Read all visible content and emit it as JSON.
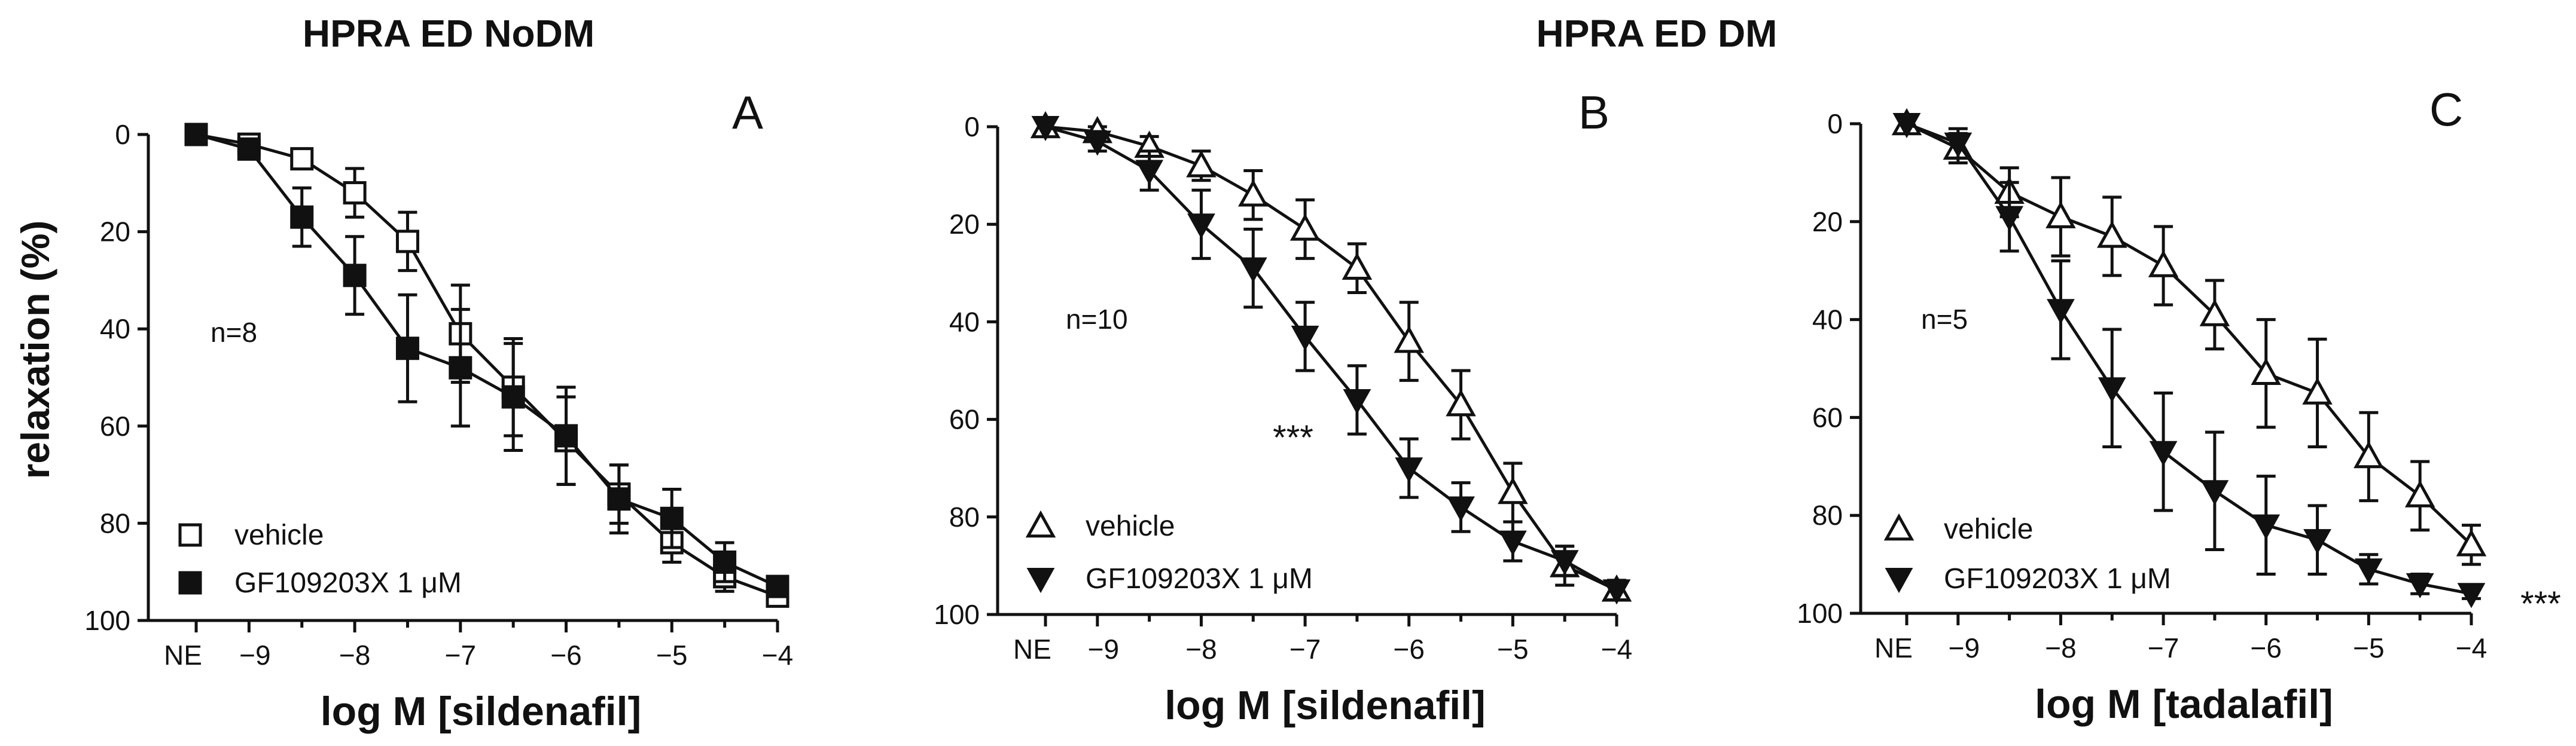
{
  "titles": [
    "HPRA ED NoDM",
    "HPRA ED DM"
  ],
  "y_axis_label": "relaxation (%)",
  "colors": {
    "ink": "#111111",
    "background": "#ffffff"
  },
  "chart_data": [
    {
      "type": "line",
      "panel": "A",
      "xlabel": "log M [sildenafil]",
      "ylabel": "relaxation (%)",
      "x_categories": [
        "NE",
        "-9",
        "-8.5",
        "-8",
        "-7.5",
        "-7",
        "-6.5",
        "-6",
        "-5.5",
        "-5",
        "-4.5",
        "-4"
      ],
      "x_tick_labels": [
        "NE",
        "−9",
        "−8",
        "−7",
        "−6",
        "−5",
        "−4"
      ],
      "y_ticks": [
        "0",
        "20",
        "40",
        "60",
        "80",
        "100"
      ],
      "ylim": [
        0,
        100
      ],
      "y_inverted": true,
      "n_label": "n=8",
      "legend_position": "bottom-left",
      "series": [
        {
          "name": "vehicle",
          "marker": "open-square",
          "values": [
            0,
            2,
            5,
            12,
            22,
            41,
            52,
            63,
            74,
            84,
            91,
            95
          ],
          "errors": [
            0,
            1,
            2,
            5,
            6,
            10,
            10,
            9,
            6,
            4,
            3,
            2
          ]
        },
        {
          "name": "GF109203X 1 μM",
          "marker": "filled-square",
          "values": [
            0,
            3,
            17,
            29,
            44,
            48,
            54,
            62,
            75,
            79,
            88,
            93
          ],
          "errors": [
            0,
            2,
            6,
            8,
            11,
            12,
            11,
            10,
            7,
            6,
            4,
            2
          ]
        }
      ]
    },
    {
      "type": "line",
      "panel": "B",
      "xlabel": "log M [sildenafil]",
      "ylabel": "relaxation (%)",
      "x_categories": [
        "NE",
        "-9",
        "-8.5",
        "-8",
        "-7.5",
        "-7",
        "-6.5",
        "-6",
        "-5.5",
        "-5",
        "-4.5",
        "-4"
      ],
      "x_tick_labels": [
        "NE",
        "−9",
        "−8",
        "−7",
        "−6",
        "−5",
        "−4"
      ],
      "y_ticks": [
        "0",
        "20",
        "40",
        "60",
        "80",
        "100"
      ],
      "ylim": [
        0,
        100
      ],
      "y_inverted": true,
      "n_label": "n=10",
      "significance": "***",
      "legend_position": "bottom-left",
      "series": [
        {
          "name": "vehicle",
          "marker": "open-triangle-up",
          "values": [
            0,
            1,
            4,
            8,
            14,
            21,
            29,
            44,
            57,
            75,
            90,
            95
          ],
          "errors": [
            0,
            1,
            2,
            3,
            5,
            6,
            5,
            8,
            7,
            6,
            4,
            2
          ]
        },
        {
          "name": "GF109203X 1 μM",
          "marker": "filled-triangle-down",
          "values": [
            0,
            3,
            9,
            20,
            29,
            43,
            56,
            70,
            78,
            85,
            89,
            95
          ],
          "errors": [
            0,
            2,
            4,
            7,
            8,
            7,
            7,
            6,
            5,
            4,
            3,
            2
          ]
        }
      ]
    },
    {
      "type": "line",
      "panel": "C",
      "xlabel": "log M [tadalafil]",
      "ylabel": "relaxation (%)",
      "x_categories": [
        "NE",
        "-9",
        "-8.5",
        "-8",
        "-7.5",
        "-7",
        "-6.5",
        "-6",
        "-5.5",
        "-5",
        "-4.5",
        "-4"
      ],
      "x_tick_labels": [
        "NE",
        "−9",
        "−8",
        "−7",
        "−6",
        "−5",
        "−4"
      ],
      "y_ticks": [
        "0",
        "20",
        "40",
        "60",
        "80",
        "100"
      ],
      "ylim": [
        0,
        100
      ],
      "y_inverted": true,
      "n_label": "n=5",
      "significance": "***",
      "legend_position": "bottom-left",
      "series": [
        {
          "name": "vehicle",
          "marker": "open-triangle-up",
          "values": [
            0,
            5,
            14,
            19,
            23,
            29,
            39,
            51,
            55,
            68,
            76,
            86
          ],
          "errors": [
            0,
            3,
            5,
            8,
            8,
            8,
            7,
            11,
            11,
            9,
            7,
            4
          ]
        },
        {
          "name": "GF109203X 1 μM",
          "marker": "filled-triangle-down",
          "values": [
            0,
            4,
            19,
            38,
            54,
            67,
            75,
            82,
            85,
            91,
            94,
            96
          ],
          "errors": [
            0,
            3,
            7,
            10,
            12,
            12,
            12,
            10,
            7,
            3,
            2,
            1
          ]
        }
      ]
    }
  ]
}
